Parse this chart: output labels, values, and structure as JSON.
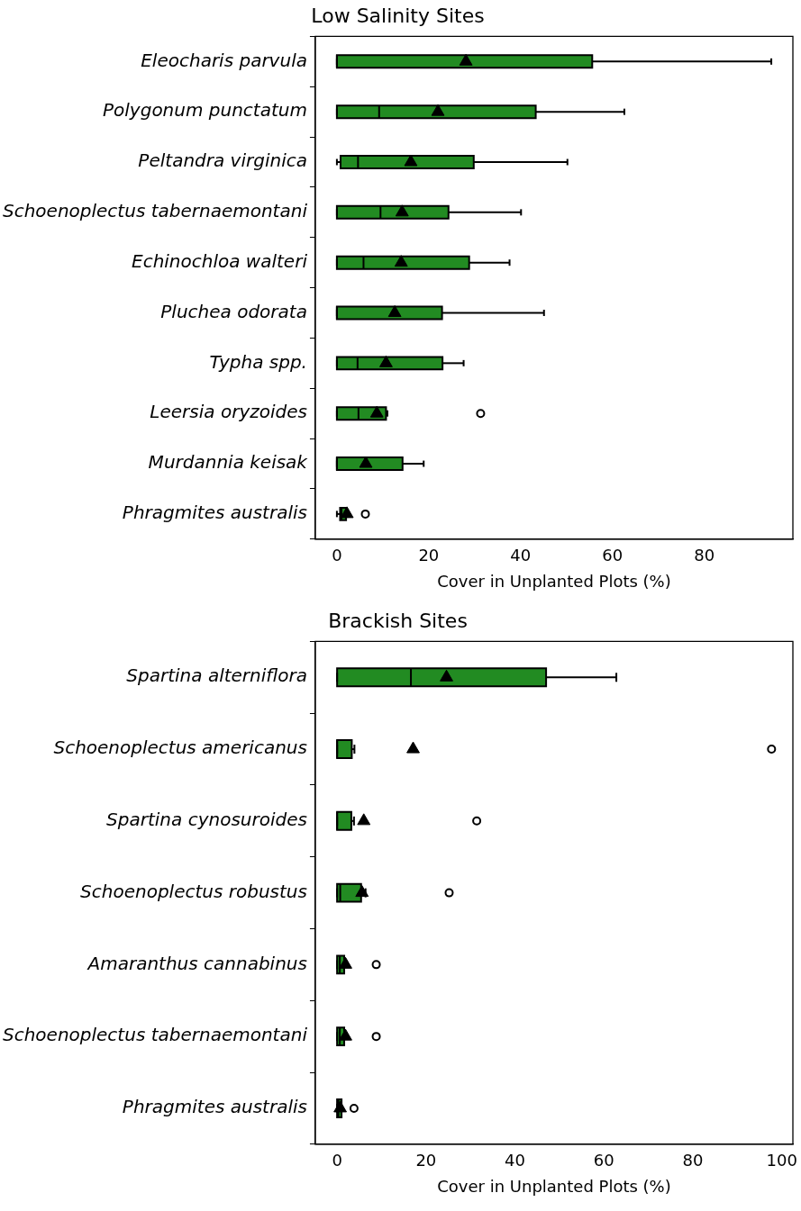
{
  "chart_data": [
    {
      "type": "box",
      "orientation": "horizontal",
      "title": "Low Salinity Sites",
      "xlabel": "Cover in Unplanted Plots (%)",
      "categories": [
        "Eleocharis parvula",
        "Polygonum punctatum",
        "Peltandra virginica",
        "Schoenoplectus tabernaemontani",
        "Echinochloa walteri",
        "Pluchea odorata",
        "Typha spp.",
        "Leersia oryzoides",
        "Murdannia keisak",
        "Phragmites australis"
      ],
      "xlim": [
        -4.7,
        99.3
      ],
      "xticks": [
        0,
        20,
        40,
        60,
        80
      ],
      "series": [
        {
          "color": "#228b22",
          "boxes": [
            {
              "low": 0,
              "q1": 0,
              "median": 0,
              "q3": 55.6,
              "high": 94.6,
              "mean": 28.1
            },
            {
              "low": 0,
              "q1": 0,
              "median": 9.2,
              "q3": 43.3,
              "high": 62.6,
              "mean": 22.0
            },
            {
              "low": 0,
              "q1": 0.8,
              "median": 4.6,
              "q3": 29.8,
              "high": 50.2,
              "mean": 16.1
            },
            {
              "low": 0,
              "q1": 0,
              "median": 9.5,
              "q3": 24.3,
              "high": 40.1,
              "mean": 14.2
            },
            {
              "low": 0,
              "q1": 0,
              "median": 5.8,
              "q3": 28.8,
              "high": 37.6,
              "mean": 14.0
            },
            {
              "low": 0,
              "q1": 0,
              "median": 0,
              "q3": 22.9,
              "high": 45.1,
              "mean": 12.6
            },
            {
              "low": 0,
              "q1": 0,
              "median": 4.5,
              "q3": 23.0,
              "high": 27.6,
              "mean": 10.7
            },
            {
              "low": 0,
              "q1": 0,
              "median": 4.7,
              "q3": 10.7,
              "high": 11.0,
              "mean": 8.7,
              "outliers": [
                31.3
              ]
            },
            {
              "low": 0,
              "q1": 0,
              "median": 0,
              "q3": 14.3,
              "high": 18.9,
              "mean": 6.3
            },
            {
              "low": 0,
              "q1": 0.7,
              "median": 1.0,
              "q3": 2.0,
              "high": 2.0,
              "mean": 2.2,
              "outliers": [
                6.2
              ]
            }
          ]
        }
      ]
    },
    {
      "type": "box",
      "orientation": "horizontal",
      "title": "Brackish Sites",
      "xlabel": "Cover in Unplanted Plots (%)",
      "categories": [
        "Spartina alterniflora",
        "Schoenoplectus americanus",
        "Spartina cynosuroides",
        "Schoenoplectus robustus",
        "Amaranthus cannabinus",
        "Schoenoplectus tabernaemontani",
        "Phragmites australis"
      ],
      "xlim": [
        -4.9,
        102.5
      ],
      "xticks": [
        0,
        20,
        40,
        60,
        80,
        100
      ],
      "series": [
        {
          "color": "#228b22",
          "boxes": [
            {
              "low": 0,
              "q1": 0,
              "median": 16.6,
              "q3": 47.0,
              "high": 62.8,
              "mean": 24.6
            },
            {
              "low": 0,
              "q1": 0,
              "median": 0,
              "q3": 3.3,
              "high": 3.9,
              "mean": 17.1,
              "outliers": [
                97.7
              ]
            },
            {
              "low": 0,
              "q1": 0,
              "median": 0,
              "q3": 3.2,
              "high": 3.8,
              "mean": 6.0,
              "outliers": [
                31.4
              ]
            },
            {
              "low": 0,
              "q1": 0,
              "median": 0.7,
              "q3": 5.4,
              "high": 6.4,
              "mean": 5.6,
              "outliers": [
                25.2
              ]
            },
            {
              "low": 0,
              "q1": 0,
              "median": 0.6,
              "q3": 1.6,
              "high": 1.6,
              "mean": 1.9,
              "outliers": [
                8.8
              ]
            },
            {
              "low": 0,
              "q1": 0,
              "median": 0.6,
              "q3": 1.6,
              "high": 1.6,
              "mean": 1.9,
              "outliers": [
                8.8
              ]
            },
            {
              "low": 0,
              "q1": 0,
              "median": 0.3,
              "q3": 1.0,
              "high": 1.0,
              "mean": 0.7,
              "outliers": [
                3.8
              ]
            }
          ]
        }
      ]
    }
  ]
}
